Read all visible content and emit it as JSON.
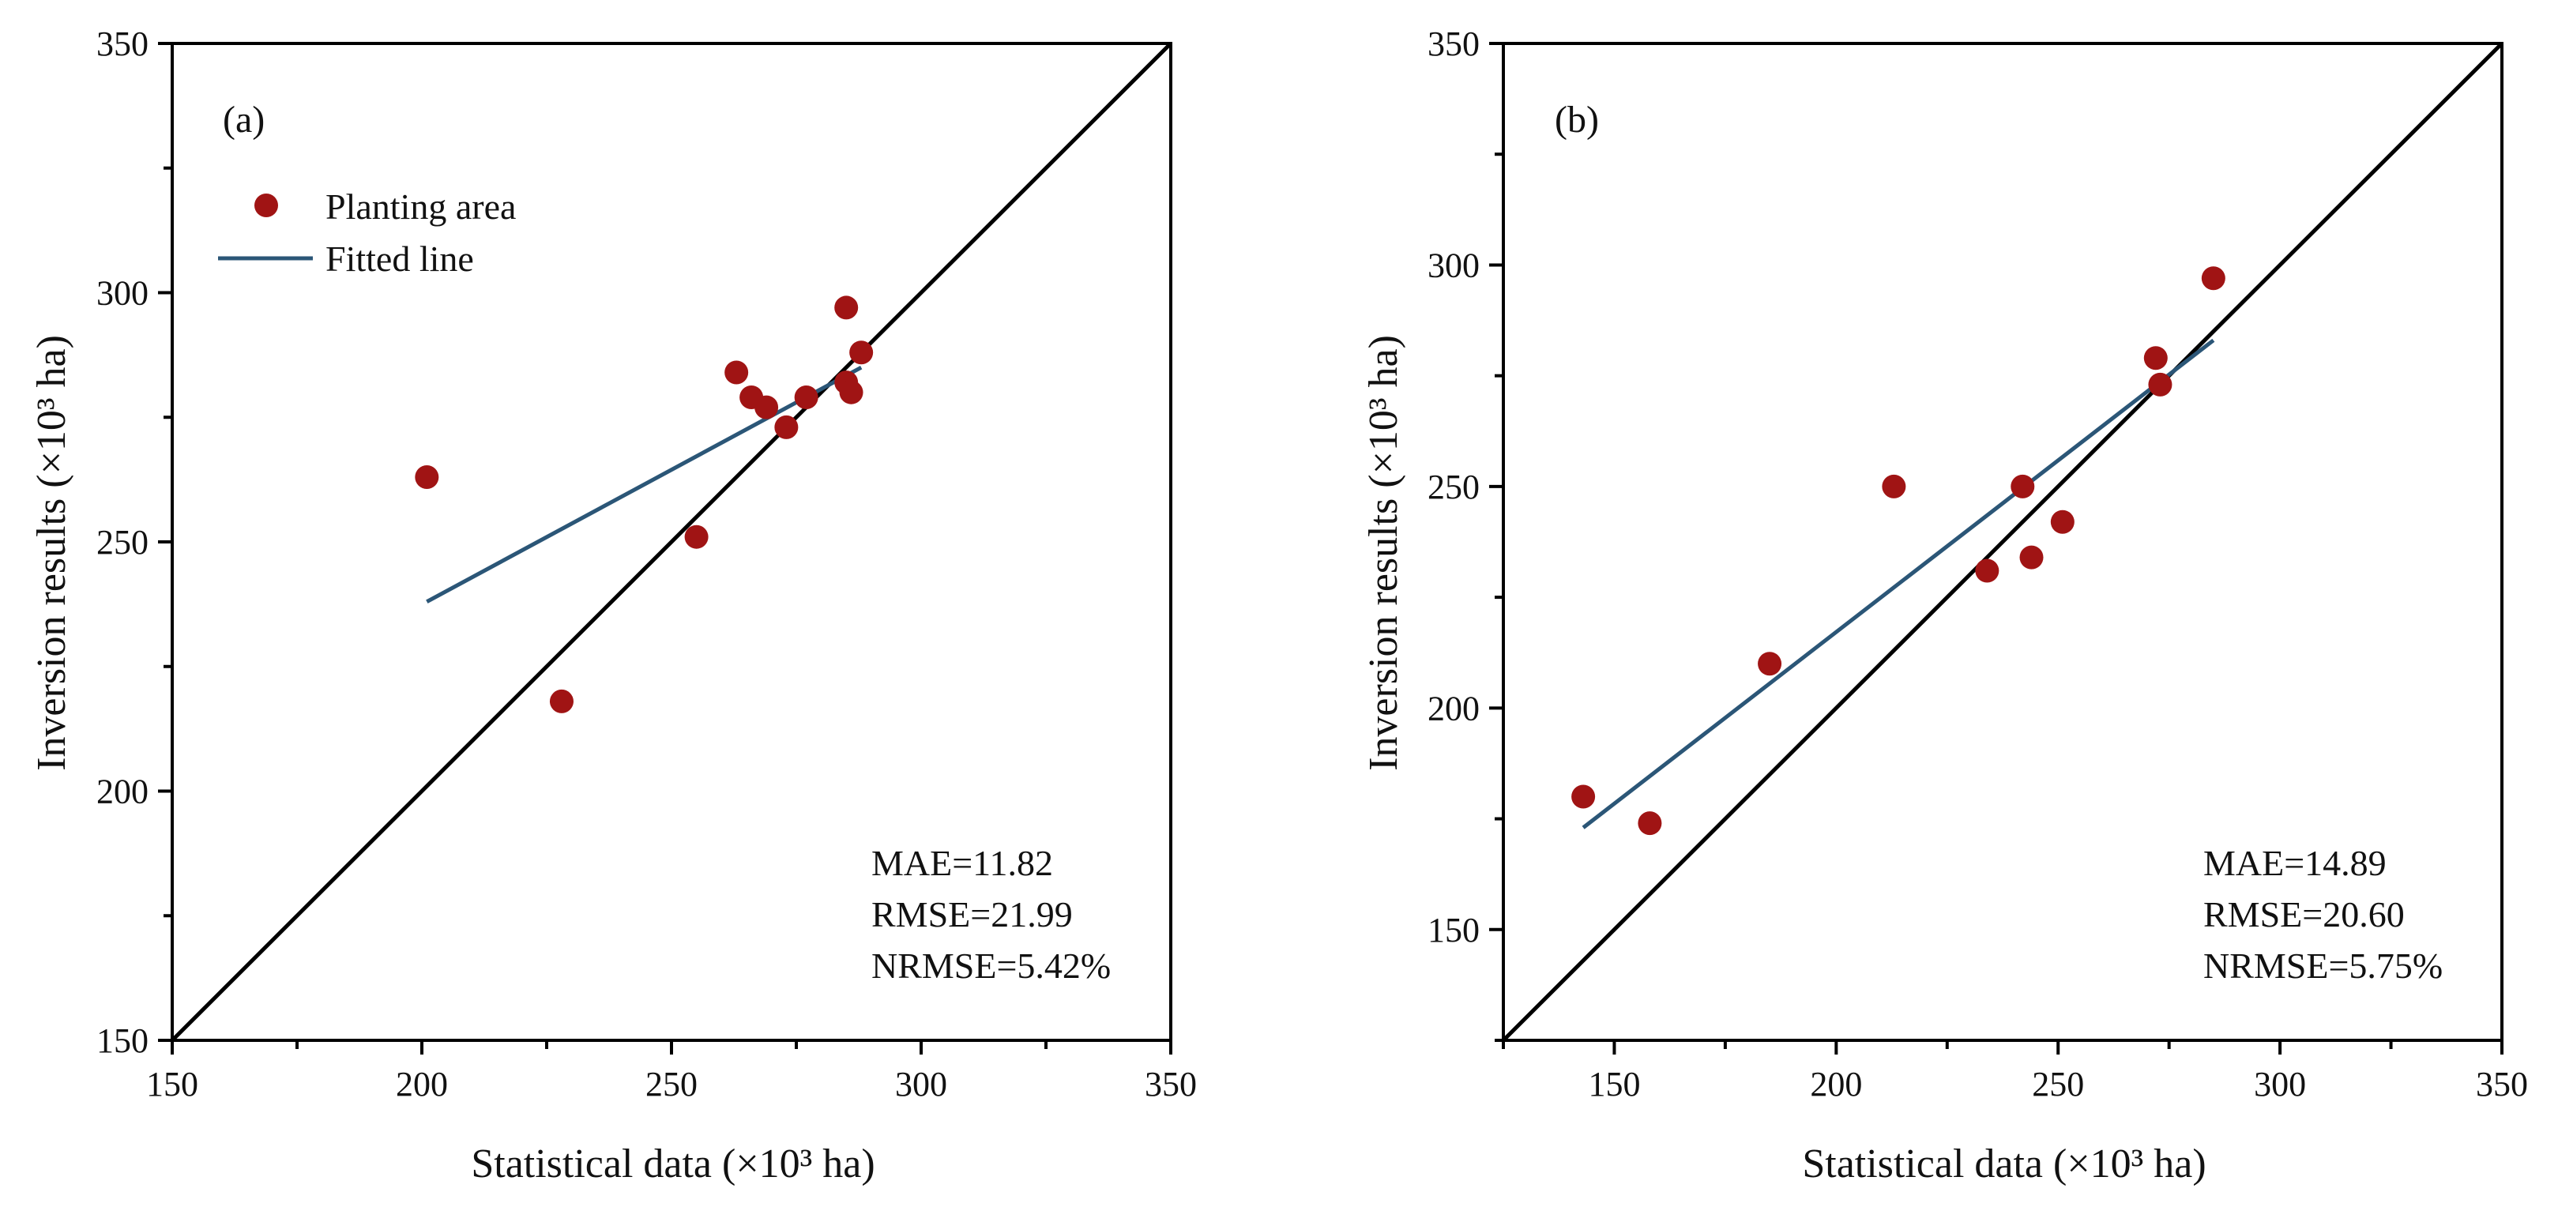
{
  "colors": {
    "point": "#a01414",
    "fit_line": "#2b5677",
    "one_to_one": "#000000",
    "axes": "#000000"
  },
  "legend": {
    "points_label": "Planting area",
    "fit_label": "Fitted line"
  },
  "chart_data": [
    {
      "type": "scatter",
      "panel_label": "(a)",
      "xlabel": "Statistical data (×10³ ha)",
      "ylabel": "Inversion results (×10³ ha)",
      "xlim": [
        150,
        350
      ],
      "ylim": [
        150,
        350
      ],
      "xticks": [
        150,
        200,
        250,
        300,
        350
      ],
      "yticks": [
        150,
        200,
        250,
        300,
        350
      ],
      "series": [
        {
          "name": "Planting area",
          "x": [
            201,
            228,
            255,
            263,
            266,
            269,
            273,
            277,
            285,
            285,
            286,
            288
          ],
          "y": [
            263,
            218,
            251,
            284,
            279,
            277,
            273,
            279,
            297,
            282,
            280,
            288
          ]
        }
      ],
      "fitted_line": {
        "x": [
          201,
          288
        ],
        "y": [
          238,
          285
        ]
      },
      "one_to_one": true,
      "stats": [
        "MAE=11.82",
        "RMSE=21.99",
        "NRMSE=5.42%"
      ]
    },
    {
      "type": "scatter",
      "panel_label": "(b)",
      "xlabel": "Statistical data (×10³ ha)",
      "ylabel": "Inversion results (×10³ ha)",
      "xlim": [
        125,
        350
      ],
      "ylim": [
        125,
        350
      ],
      "xticks": [
        150,
        200,
        250,
        300,
        350
      ],
      "yticks": [
        150,
        200,
        250,
        300,
        350
      ],
      "series": [
        {
          "name": "Planting area",
          "x": [
            143,
            158,
            185,
            213,
            234,
            242,
            244,
            251,
            272,
            273,
            285
          ],
          "y": [
            180,
            174,
            210,
            250,
            231,
            250,
            234,
            242,
            279,
            273,
            297
          ]
        }
      ],
      "fitted_line": {
        "x": [
          143,
          285
        ],
        "y": [
          173,
          283
        ]
      },
      "one_to_one": true,
      "stats": [
        "MAE=14.89",
        "RMSE=20.60",
        "NRMSE=5.75%"
      ]
    }
  ]
}
